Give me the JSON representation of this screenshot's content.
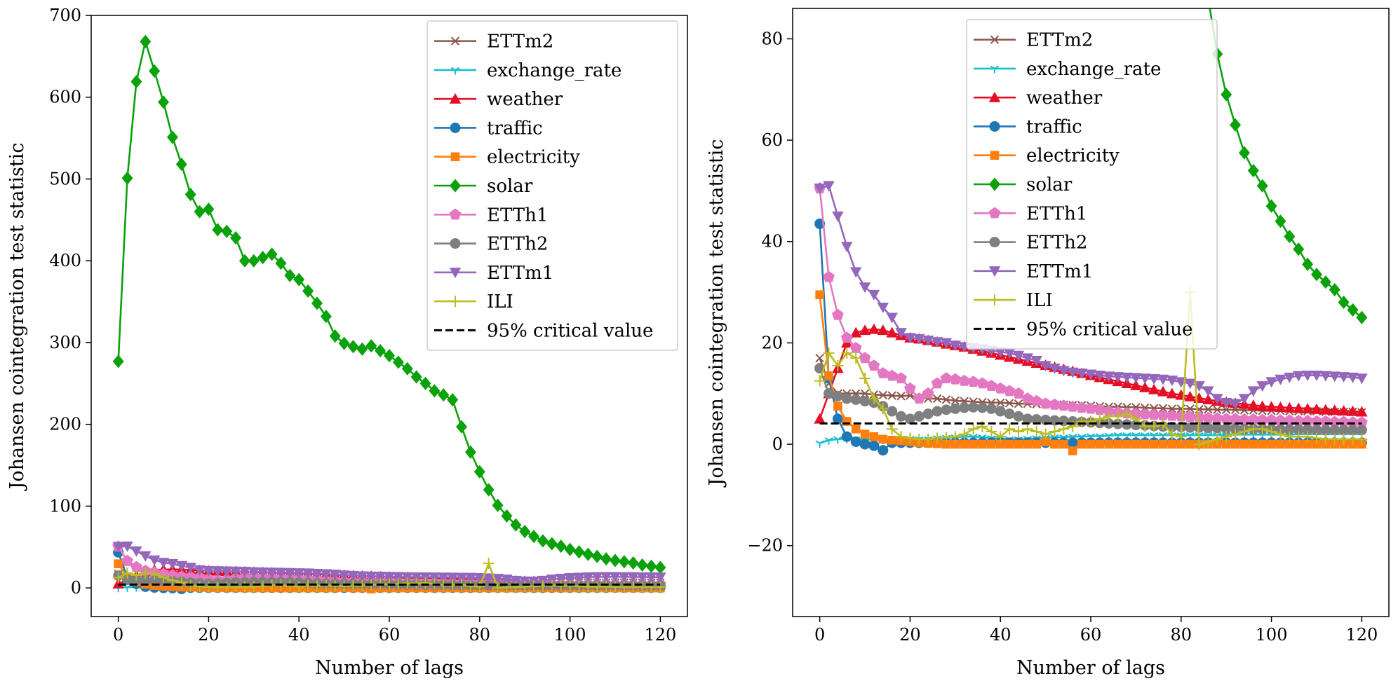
{
  "chart_data": [
    {
      "type": "line",
      "title": "",
      "xlabel": "Number of lags",
      "ylabel": "Johansen cointegration test statistic",
      "xlim": [
        -6,
        126
      ],
      "ylim": [
        -35,
        700
      ],
      "xticks": [
        0,
        20,
        40,
        60,
        80,
        100,
        120
      ],
      "xtick_labels": [
        "0",
        "20",
        "40",
        "60",
        "80",
        "100",
        "120"
      ],
      "yticks": [
        0,
        100,
        200,
        300,
        400,
        500,
        600,
        700
      ],
      "ytick_labels": [
        "0",
        "100",
        "200",
        "300",
        "400",
        "500",
        "600",
        "700"
      ],
      "legend_position": "top-right"
    },
    {
      "type": "line",
      "title": "",
      "xlabel": "Number of lags",
      "ylabel": "Johansen cointegration test statistic",
      "xlim": [
        -6,
        126
      ],
      "ylim": [
        -34,
        86
      ],
      "xticks": [
        0,
        20,
        40,
        60,
        80,
        100,
        120
      ],
      "xtick_labels": [
        "0",
        "20",
        "40",
        "60",
        "80",
        "100",
        "120"
      ],
      "yticks": [
        -20,
        0,
        20,
        40,
        60,
        80
      ],
      "ytick_labels": [
        "−20",
        "0",
        "20",
        "40",
        "60",
        "80"
      ],
      "legend_position": "top-center"
    }
  ],
  "x_lags": [
    0,
    2,
    4,
    6,
    8,
    10,
    12,
    14,
    16,
    18,
    20,
    22,
    24,
    26,
    28,
    30,
    32,
    34,
    36,
    38,
    40,
    42,
    44,
    46,
    48,
    50,
    52,
    54,
    56,
    58,
    60,
    62,
    64,
    66,
    68,
    70,
    72,
    74,
    76,
    78,
    80,
    82,
    84,
    86,
    88,
    90,
    92,
    94,
    96,
    98,
    100,
    102,
    104,
    106,
    108,
    110,
    112,
    114,
    116,
    118,
    120
  ],
  "series": [
    {
      "name": "ETTm2",
      "color": "#8c564b",
      "marker": "x",
      "values": [
        17,
        12,
        10,
        10,
        10,
        10,
        9.8,
        9.7,
        9.6,
        9.5,
        9.6,
        9.2,
        9,
        9,
        8.8,
        8.6,
        8.5,
        8.4,
        8.3,
        8.2,
        8.2,
        8.1,
        8,
        8,
        7.9,
        7.9,
        7.8,
        7.8,
        7.7,
        7.7,
        7.6,
        7.5,
        7.4,
        7.4,
        7.3,
        7.3,
        7.2,
        7.1,
        7.1,
        7,
        7,
        7,
        6.9,
        6.9,
        6.8,
        6.8,
        6.8,
        6.7,
        6.7,
        6.6,
        6.6,
        6.6,
        6.5,
        6.5,
        6.5,
        6.5,
        6.4,
        6.4,
        6.4,
        6.4,
        6.3
      ]
    },
    {
      "name": "exchange_rate",
      "color": "#17becf",
      "marker": "tri_down",
      "values": [
        0.2,
        0.8,
        1,
        1.1,
        1,
        1,
        0.9,
        0.9,
        1,
        1.1,
        1.1,
        1,
        1,
        1.2,
        1.3,
        1.4,
        1.5,
        1.5,
        1.4,
        1.2,
        1.1,
        1,
        1,
        1.1,
        1.2,
        1.3,
        1.4,
        1.4,
        1.5,
        1.5,
        1.6,
        1.6,
        1.7,
        1.8,
        1.8,
        1.8,
        1.8,
        1.8,
        1.8,
        1.8,
        1.8,
        1.8,
        1.8,
        1.8,
        1.8,
        1.8,
        1.9,
        1.9,
        1.9,
        1.9,
        1.9,
        1.9,
        1.9,
        2,
        2,
        2,
        2,
        2,
        2,
        2,
        2
      ]
    },
    {
      "name": "weather",
      "color": "#e50f25",
      "marker": "^",
      "values": [
        5,
        10,
        15,
        20,
        22,
        22.5,
        22.7,
        22.5,
        22,
        21.5,
        21,
        20.8,
        20.5,
        20.2,
        19.8,
        19.5,
        19.2,
        18.8,
        18.4,
        18,
        17.6,
        17.2,
        16.8,
        16.4,
        16,
        15.6,
        15.2,
        14.8,
        14.4,
        14,
        13.6,
        13.2,
        12.8,
        12.4,
        12,
        11.6,
        11.2,
        10.8,
        10.4,
        10,
        9.7,
        9.4,
        9.1,
        8.8,
        8.5,
        8.3,
        8.1,
        7.9,
        7.7,
        7.5,
        7.4,
        7.3,
        7.2,
        7.1,
        7,
        6.9,
        6.8,
        6.7,
        6.6,
        6.5,
        6.4
      ]
    },
    {
      "name": "traffic",
      "color": "#1f77b4",
      "marker": "o",
      "values": [
        43.5,
        13,
        5,
        1.5,
        0.5,
        0,
        -0.3,
        -1.2,
        0.3,
        0.3,
        0.3,
        0.3,
        0.3,
        0.3,
        0.3,
        0.3,
        0.3,
        0.3,
        0.3,
        0.3,
        0.3,
        0.3,
        0.3,
        0.3,
        0.3,
        0.3,
        0.3,
        0.3,
        0.3,
        0.3,
        0.3,
        0.3,
        0.3,
        0.3,
        0.3,
        0.3,
        0.3,
        0.3,
        0.3,
        0.3,
        0.3,
        0.3,
        0.3,
        0.3,
        0.3,
        0.3,
        0.3,
        0.3,
        0.3,
        0.3,
        0.3,
        0.3,
        0.3,
        0.3,
        0.3,
        0.3,
        0.3,
        0.3,
        0.3,
        0.3,
        0.3
      ]
    },
    {
      "name": "electricity",
      "color": "#ff7f0e",
      "marker": "s",
      "values": [
        29.5,
        13.5,
        7.5,
        4.5,
        3,
        2,
        1.5,
        1,
        0.8,
        0.7,
        0.5,
        0.3,
        0.2,
        0.1,
        0,
        0,
        0,
        0,
        0,
        0,
        0,
        0,
        0,
        0,
        0,
        0.5,
        0,
        0,
        -1.3,
        0,
        0,
        0,
        0,
        0,
        0,
        0,
        0,
        0,
        0,
        0,
        0,
        0,
        0,
        0,
        0,
        0,
        0,
        0,
        0,
        0,
        0,
        0,
        0,
        0,
        0,
        0,
        0,
        0,
        0,
        0,
        0
      ]
    },
    {
      "name": "solar",
      "color": "#0aa20a",
      "marker": "D",
      "values": [
        277,
        501,
        619,
        668,
        632,
        594,
        551,
        518,
        481,
        460,
        463,
        438,
        436,
        428,
        400,
        400,
        404,
        408,
        397,
        382,
        377,
        363,
        348,
        332,
        308,
        299,
        295,
        292,
        296,
        290,
        284,
        276,
        268,
        258,
        250,
        241,
        236,
        230,
        197,
        166,
        142,
        120,
        101,
        88,
        77,
        69,
        63,
        57.5,
        54,
        51,
        47,
        44,
        41,
        38.5,
        35.5,
        33.5,
        32,
        30.5,
        28,
        26.5,
        25
      ]
    },
    {
      "name": "ETTh1",
      "color": "#e377c2",
      "marker": "p",
      "values": [
        50.5,
        33,
        25.5,
        21,
        19,
        17,
        15.5,
        14,
        13.5,
        13,
        11,
        9,
        10,
        12,
        13,
        12.8,
        12.5,
        12.3,
        12,
        11.5,
        11,
        10.5,
        10,
        9,
        8.5,
        8,
        7.8,
        7.6,
        7.4,
        7.2,
        7,
        6.8,
        6.5,
        6.3,
        6.1,
        6,
        5.9,
        5.8,
        5.7,
        5.6,
        5.5,
        5.4,
        5.3,
        5.2,
        5.1,
        5,
        5,
        4.9,
        4.9,
        4.8,
        4.8,
        4.7,
        4.7,
        4.6,
        4.6,
        4.5,
        4.5,
        4.4,
        4.4,
        4.3,
        4.3
      ]
    },
    {
      "name": "ETTh2",
      "color": "#7f7f7f",
      "marker": "o",
      "values": [
        15,
        10,
        9.5,
        9,
        8.8,
        8.5,
        8.2,
        7.5,
        6.5,
        5.5,
        5,
        5.5,
        6,
        6.5,
        6.8,
        7,
        7.2,
        7.3,
        7.2,
        7,
        6.5,
        6,
        5.5,
        5,
        4.9,
        4.8,
        4.7,
        4.6,
        4.5,
        4.4,
        4.3,
        4.2,
        4.1,
        4,
        3.9,
        3.8,
        3.7,
        3.6,
        3.5,
        3.4,
        3.4,
        3.3,
        3.3,
        3.2,
        3.2,
        3.1,
        3.1,
        3,
        3,
        3,
        3,
        2.9,
        2.9,
        2.9,
        2.9,
        2.8,
        2.8,
        2.8,
        2.8,
        2.8,
        2.8
      ]
    },
    {
      "name": "ETTm1",
      "color": "#9467bd",
      "marker": "v",
      "values": [
        50.5,
        51,
        45,
        39,
        34,
        31,
        29.5,
        27,
        25,
        22,
        21,
        20.8,
        20.5,
        20.2,
        20,
        19.5,
        19.2,
        19,
        18.8,
        18.5,
        18.2,
        18,
        17.5,
        17,
        16.5,
        15.5,
        15,
        14.5,
        14.2,
        14,
        13.8,
        13.6,
        13.4,
        13.3,
        13.2,
        13.1,
        13,
        12.9,
        12.8,
        12.6,
        12.3,
        12,
        11.5,
        10.5,
        9,
        8.2,
        8,
        9,
        10.5,
        11.5,
        12.3,
        12.8,
        13.2,
        13.5,
        13.6,
        13.6,
        13.5,
        13.4,
        13.3,
        13.2,
        13
      ]
    },
    {
      "name": "ILI",
      "color": "#bcbd22",
      "marker": "+",
      "values": [
        12.5,
        18,
        15.5,
        18,
        17,
        13,
        9,
        7,
        3,
        1.5,
        1.2,
        1,
        1,
        1.2,
        1.3,
        1.5,
        2,
        3,
        3.5,
        2.5,
        1.5,
        3,
        2.5,
        3,
        2.5,
        2,
        2.5,
        3,
        3.5,
        4.5,
        4.5,
        5,
        5.5,
        5.5,
        6,
        5,
        3.5,
        3.5,
        4,
        2,
        1.5,
        30,
        0,
        0.5,
        1,
        1.5,
        2,
        2.5,
        3,
        3,
        2.5,
        2,
        1.5,
        1.5,
        1.5,
        1.2,
        1,
        1,
        1,
        1,
        1
      ]
    }
  ],
  "critical_value": {
    "name": "95% critical value",
    "color": "#000000",
    "value": 4.1
  }
}
